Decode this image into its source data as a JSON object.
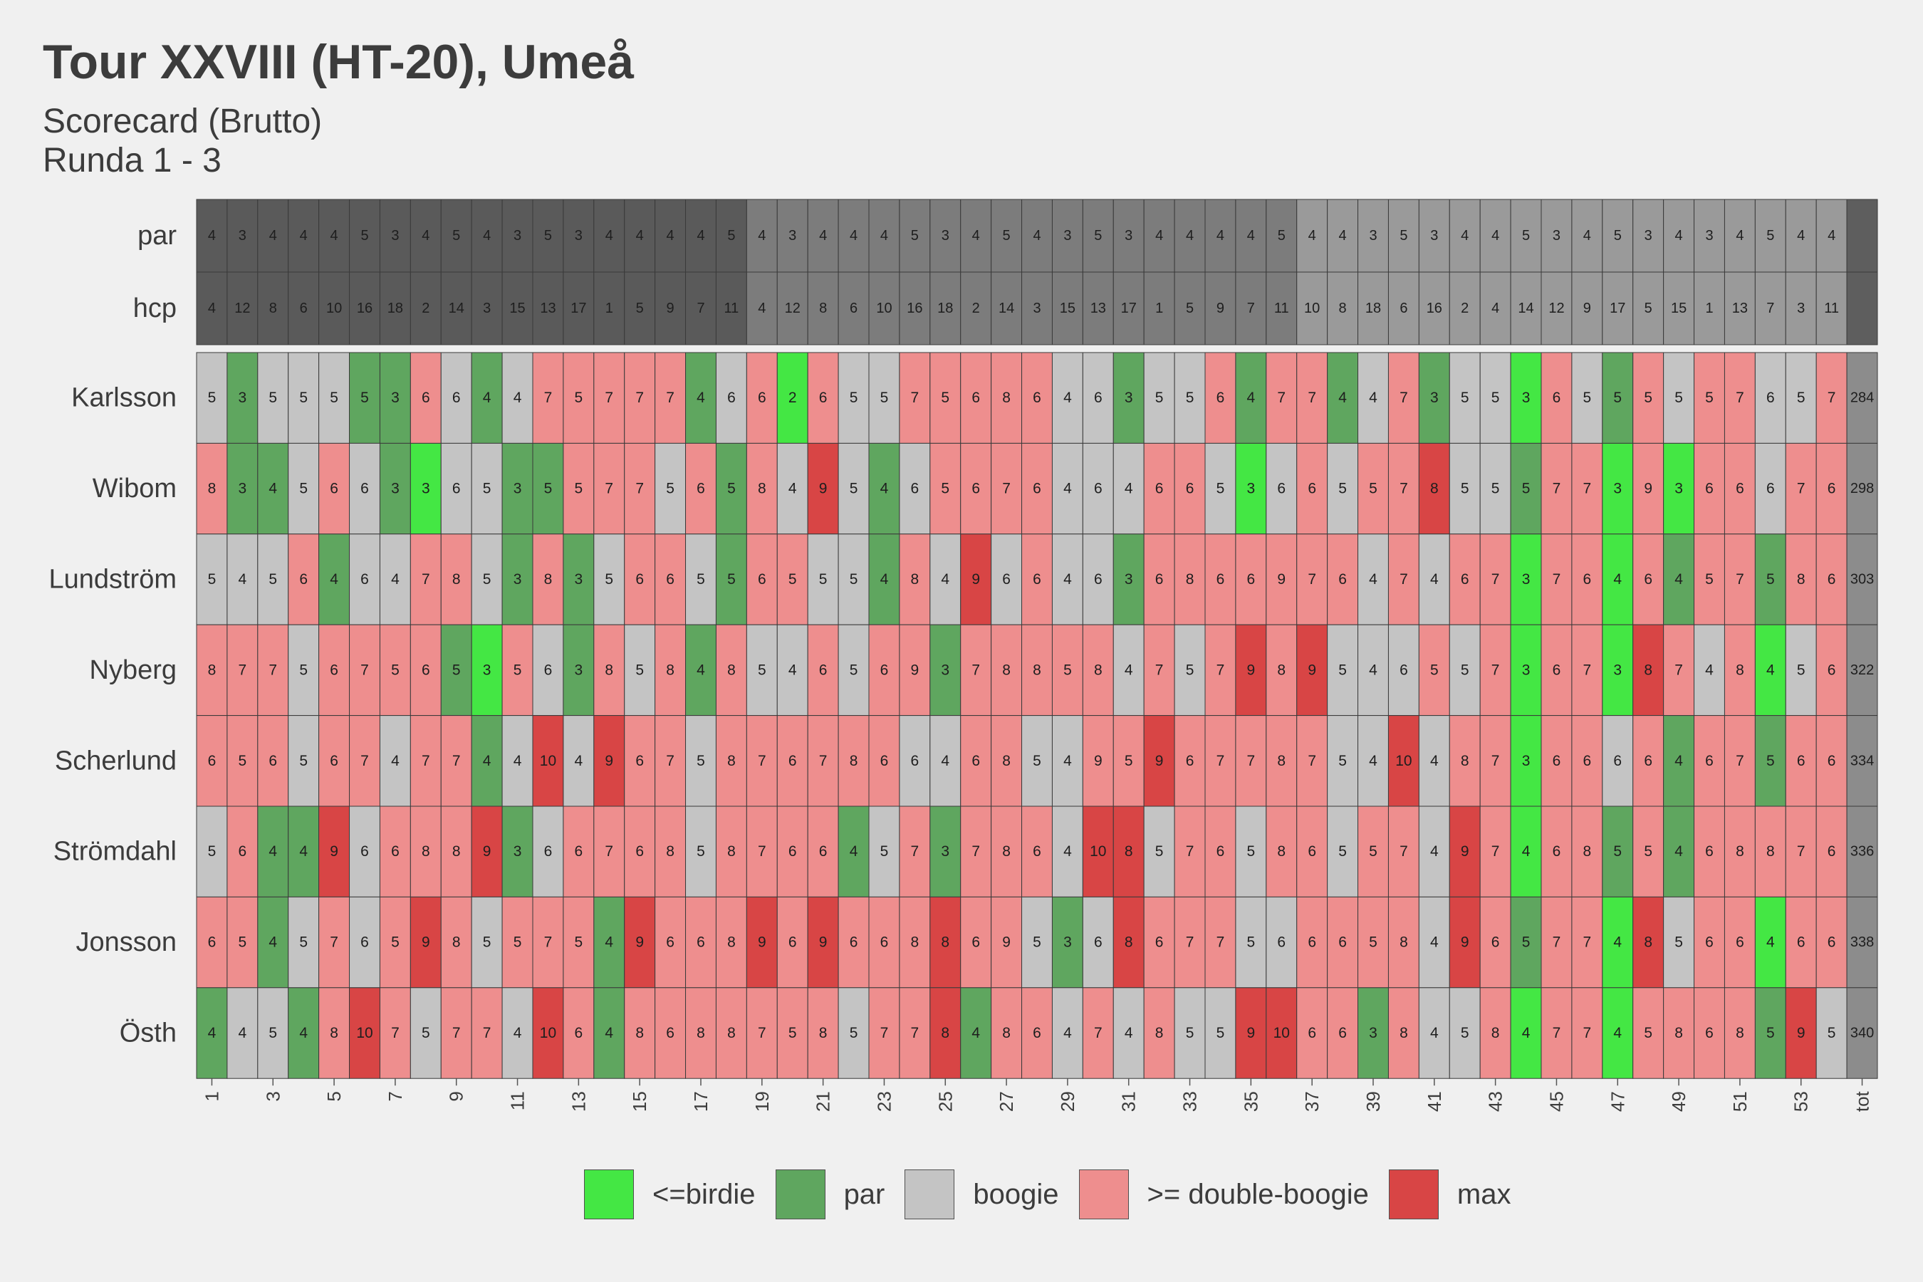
{
  "header": {
    "title": "Tour XXVIII (HT-20), Umeå",
    "subtitle_line1": "Scorecard (Brutto)",
    "subtitle_line2": "Runda 1 - 3"
  },
  "colors": {
    "birdie": "#44e744",
    "par": "#5fa65f",
    "bogey": "#c4c4c4",
    "double": "#ee8e8e",
    "max": "#d84545",
    "header_dark": "#5a5a5a",
    "header_mid": "#7c7c7c",
    "header_light": "#9a9a9a",
    "total": "#8c8c8c",
    "total_header": "#5e5e5e"
  },
  "legend": [
    {
      "key": "birdie",
      "label": "<=birdie"
    },
    {
      "key": "par",
      "label": "par"
    },
    {
      "key": "bogey",
      "label": "boogie"
    },
    {
      "key": "double",
      "label": ">= double-boogie"
    },
    {
      "key": "max",
      "label": "max"
    }
  ],
  "chart_data": {
    "type": "heatmap",
    "holes": 54,
    "x_tick_labels": [
      "1",
      "3",
      "5",
      "7",
      "9",
      "11",
      "13",
      "15",
      "17",
      "19",
      "21",
      "23",
      "25",
      "27",
      "29",
      "31",
      "33",
      "35",
      "37",
      "39",
      "41",
      "43",
      "45",
      "47",
      "49",
      "51",
      "53",
      "tot"
    ],
    "par_row_label": "par",
    "hcp_row_label": "hcp",
    "par": [
      4,
      3,
      4,
      4,
      4,
      5,
      3,
      4,
      5,
      4,
      3,
      5,
      3,
      4,
      4,
      4,
      4,
      5,
      4,
      3,
      4,
      4,
      4,
      5,
      3,
      4,
      5,
      4,
      3,
      5,
      3,
      4,
      4,
      4,
      4,
      5,
      4,
      4,
      3,
      5,
      3,
      4,
      4,
      5,
      3,
      4,
      5,
      3,
      4,
      3,
      4,
      5,
      4,
      4
    ],
    "hcp": [
      4,
      12,
      8,
      6,
      10,
      16,
      18,
      2,
      14,
      3,
      15,
      13,
      17,
      1,
      5,
      9,
      7,
      11,
      4,
      12,
      8,
      6,
      10,
      16,
      18,
      2,
      14,
      3,
      15,
      13,
      17,
      1,
      5,
      9,
      7,
      11,
      10,
      8,
      18,
      6,
      16,
      2,
      4,
      14,
      12,
      9,
      17,
      5,
      15,
      1,
      13,
      7,
      3,
      11
    ],
    "players": [
      {
        "name": "Karlsson",
        "total": 284,
        "scores": [
          5,
          3,
          5,
          5,
          5,
          5,
          3,
          6,
          6,
          4,
          4,
          7,
          5,
          7,
          7,
          7,
          4,
          6,
          6,
          2,
          6,
          5,
          5,
          7,
          5,
          6,
          8,
          6,
          4,
          6,
          3,
          5,
          5,
          6,
          4,
          7,
          7,
          4,
          4,
          7,
          3,
          5,
          5,
          3,
          6,
          5,
          5,
          5,
          5,
          5,
          7,
          6,
          5,
          7
        ]
      },
      {
        "name": "Wibom",
        "total": 298,
        "scores": [
          8,
          3,
          4,
          5,
          6,
          6,
          3,
          3,
          6,
          5,
          3,
          5,
          5,
          7,
          7,
          5,
          6,
          5,
          8,
          4,
          9,
          5,
          4,
          6,
          5,
          6,
          7,
          6,
          4,
          6,
          4,
          6,
          6,
          5,
          3,
          6,
          6,
          5,
          5,
          7,
          8,
          5,
          5,
          5,
          7,
          7,
          3,
          9,
          3,
          6,
          6,
          6,
          7,
          6
        ]
      },
      {
        "name": "Lundström",
        "total": 303,
        "scores": [
          5,
          4,
          5,
          6,
          4,
          6,
          4,
          7,
          8,
          5,
          3,
          8,
          3,
          5,
          6,
          6,
          5,
          5,
          6,
          5,
          5,
          5,
          4,
          8,
          4,
          9,
          6,
          6,
          4,
          6,
          3,
          6,
          8,
          6,
          6,
          9,
          7,
          6,
          4,
          7,
          4,
          6,
          7,
          3,
          7,
          6,
          4,
          6,
          4,
          5,
          7,
          5,
          8,
          6
        ]
      },
      {
        "name": "Nyberg",
        "total": 322,
        "scores": [
          8,
          7,
          7,
          5,
          6,
          7,
          5,
          6,
          5,
          3,
          5,
          6,
          3,
          8,
          5,
          8,
          4,
          8,
          5,
          4,
          6,
          5,
          6,
          9,
          3,
          7,
          8,
          8,
          5,
          8,
          4,
          7,
          5,
          7,
          9,
          8,
          9,
          5,
          4,
          6,
          5,
          5,
          7,
          3,
          6,
          7,
          3,
          8,
          7,
          4,
          8,
          4,
          5,
          6
        ]
      },
      {
        "name": "Scherlund",
        "total": 334,
        "scores": [
          6,
          5,
          6,
          5,
          6,
          7,
          4,
          7,
          7,
          4,
          4,
          10,
          4,
          9,
          6,
          7,
          5,
          8,
          7,
          6,
          7,
          8,
          6,
          6,
          4,
          6,
          8,
          5,
          4,
          9,
          5,
          9,
          6,
          7,
          7,
          8,
          7,
          5,
          4,
          10,
          4,
          8,
          7,
          3,
          6,
          6,
          6,
          6,
          4,
          6,
          7,
          5,
          6,
          6
        ]
      },
      {
        "name": "Strömdahl",
        "total": 336,
        "scores": [
          5,
          6,
          4,
          4,
          9,
          6,
          6,
          8,
          8,
          9,
          3,
          6,
          6,
          7,
          6,
          8,
          5,
          8,
          7,
          6,
          6,
          4,
          5,
          7,
          3,
          7,
          8,
          6,
          4,
          10,
          8,
          5,
          7,
          6,
          5,
          8,
          6,
          5,
          5,
          7,
          4,
          9,
          7,
          4,
          6,
          8,
          5,
          5,
          4,
          6,
          8,
          8,
          7,
          6
        ]
      },
      {
        "name": "Jonsson",
        "total": 338,
        "scores": [
          6,
          5,
          4,
          5,
          7,
          6,
          5,
          9,
          8,
          5,
          5,
          7,
          5,
          4,
          9,
          6,
          6,
          8,
          9,
          6,
          9,
          6,
          6,
          8,
          8,
          6,
          9,
          5,
          3,
          6,
          8,
          6,
          7,
          7,
          5,
          6,
          6,
          6,
          5,
          8,
          4,
          9,
          6,
          5,
          7,
          7,
          4,
          8,
          5,
          6,
          6,
          4,
          6,
          6
        ]
      },
      {
        "name": "Östh",
        "total": 340,
        "scores": [
          4,
          4,
          5,
          4,
          8,
          10,
          7,
          5,
          7,
          7,
          4,
          10,
          6,
          4,
          8,
          6,
          8,
          8,
          7,
          5,
          8,
          5,
          7,
          7,
          8,
          4,
          8,
          6,
          4,
          7,
          4,
          8,
          5,
          5,
          9,
          10,
          6,
          6,
          3,
          8,
          4,
          5,
          8,
          4,
          7,
          7,
          4,
          5,
          8,
          6,
          8,
          5,
          9,
          5
        ]
      }
    ]
  }
}
